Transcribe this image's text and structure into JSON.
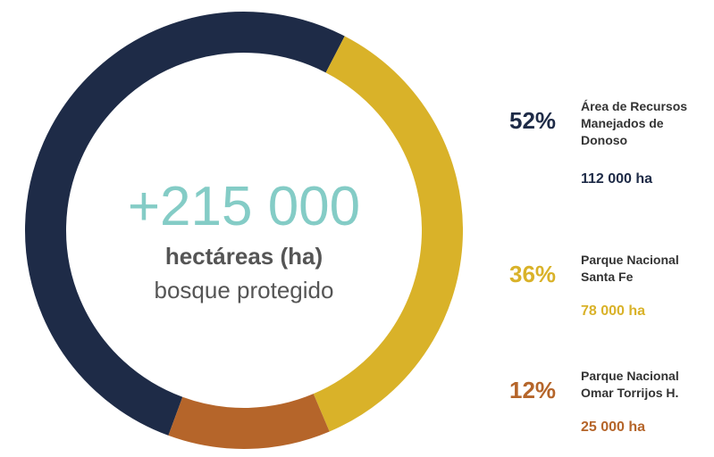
{
  "chart_data": {
    "type": "pie",
    "center_title": "+215 000",
    "center_subtitle": "hectáreas (ha)",
    "center_caption": "bosque protegido",
    "categories": [
      "Área de Recursos Manejados de Donoso",
      "Parque Nacional Santa Fe",
      "Parque Nacional Omar Torrijos H."
    ],
    "values": [
      52,
      36,
      12
    ],
    "value_labels": [
      "52%",
      "36%",
      "12%"
    ],
    "amount_labels": [
      "112 000 ha",
      "78 000 ha",
      "25 000 ha"
    ],
    "colors": [
      "#1e2b47",
      "#d9b229",
      "#b5652a"
    ]
  }
}
